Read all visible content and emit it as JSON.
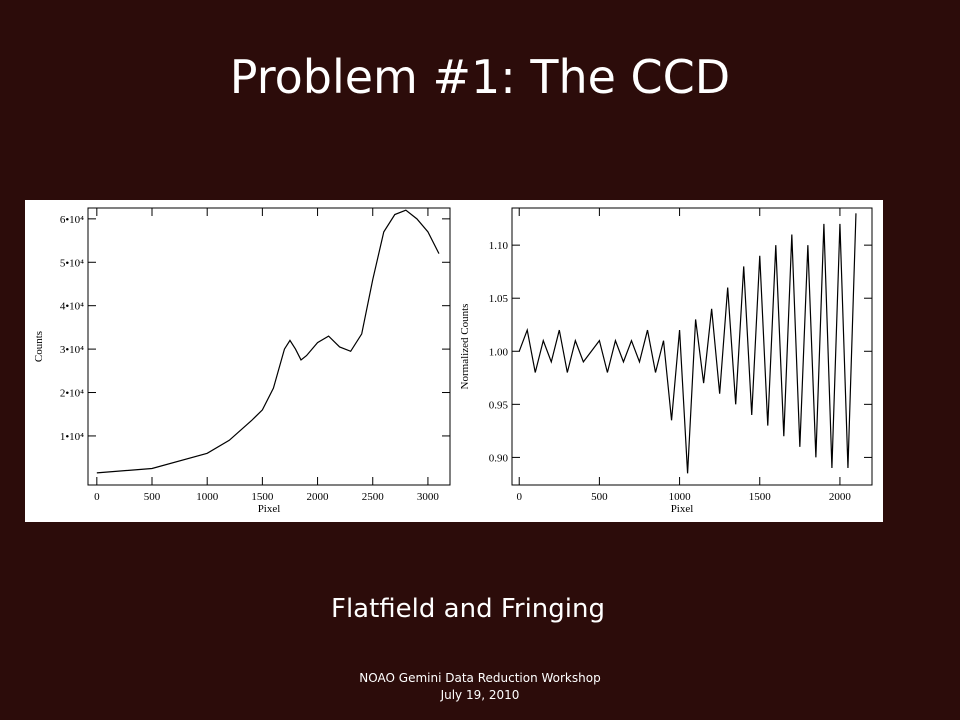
{
  "title": "Problem #1:  The CCD",
  "caption": "Flatfield and Fringing",
  "footer": [
    "NOAO Gemini Data Reduction Workshop",
    "July 19, 2010"
  ],
  "chart_data": [
    {
      "type": "line",
      "x_label": "Pixel",
      "y_label": "Counts",
      "x": [
        0,
        500,
        1000,
        1200,
        1400,
        1500,
        1600,
        1700,
        1750,
        1800,
        1850,
        1900,
        2000,
        2100,
        2200,
        2300,
        2400,
        2500,
        2600,
        2700,
        2800,
        2900,
        3000,
        3100
      ],
      "series": [
        {
          "color": "#000000",
          "values": [
            1500,
            2500,
            6000,
            9000,
            13500,
            16000,
            21000,
            30000,
            32000,
            30000,
            27500,
            28500,
            31500,
            33000,
            30500,
            29500,
            33500,
            46000,
            57000,
            61000,
            62000,
            60000,
            57000,
            52000
          ]
        }
      ],
      "xlim": [
        -80,
        3200
      ],
      "ylim": [
        -1300,
        62500
      ],
      "xticks": [
        0,
        500,
        1000,
        1500,
        2000,
        2500,
        3000
      ],
      "yticks": [
        {
          "value": 10000,
          "label": "1•10⁴"
        },
        {
          "value": 20000,
          "label": "2•10⁴"
        },
        {
          "value": 30000,
          "label": "3•10⁴"
        },
        {
          "value": 40000,
          "label": "4•10⁴"
        },
        {
          "value": 50000,
          "label": "5•10⁴"
        },
        {
          "value": 60000,
          "label": "6•10⁴"
        }
      ]
    },
    {
      "type": "line",
      "x_label": "Pixel",
      "y_label": "Normalized Counts",
      "x": [
        0,
        50,
        100,
        150,
        200,
        250,
        300,
        350,
        400,
        450,
        500,
        550,
        600,
        650,
        700,
        750,
        800,
        850,
        900,
        950,
        1000,
        1050,
        1100,
        1150,
        1200,
        1250,
        1300,
        1350,
        1400,
        1450,
        1500,
        1550,
        1600,
        1650,
        1700,
        1750,
        1800,
        1850,
        1900,
        1950,
        2000,
        2050,
        2100
      ],
      "series": [
        {
          "color": "#000000",
          "values": [
            1.0,
            1.02,
            0.98,
            1.01,
            0.99,
            1.02,
            0.98,
            1.01,
            0.99,
            1.0,
            1.01,
            0.98,
            1.01,
            0.99,
            1.01,
            0.99,
            1.02,
            0.98,
            1.01,
            0.935,
            1.02,
            0.885,
            1.03,
            0.97,
            1.04,
            0.96,
            1.06,
            0.95,
            1.08,
            0.94,
            1.09,
            0.93,
            1.1,
            0.92,
            1.11,
            0.91,
            1.1,
            0.9,
            1.12,
            0.89,
            1.12,
            0.89,
            1.13
          ]
        }
      ],
      "xlim": [
        -45,
        2200
      ],
      "ylim": [
        0.874,
        1.135
      ],
      "xticks": [
        0,
        500,
        1000,
        1500,
        2000
      ],
      "yticks": [
        {
          "value": 0.9,
          "label": "0.90"
        },
        0.95,
        {
          "value": 1.0,
          "label": "1.00"
        },
        1.05,
        {
          "value": 1.1,
          "label": "1.10"
        }
      ]
    }
  ]
}
